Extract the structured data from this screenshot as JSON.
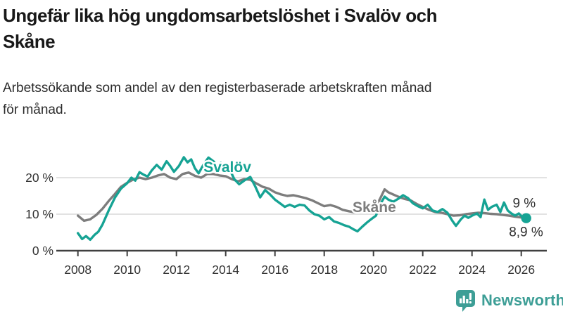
{
  "title": {
    "line1": "Ungefär lika hög ungdomsarbetslöshet i Svalöv och",
    "line2": "Skåne"
  },
  "subtitle": {
    "line1": "Arbetssökande som andel av den registerbaserade arbetskraften månad",
    "line2": "för månad."
  },
  "branding": {
    "logo_text": "Newsworthy",
    "logo_icon": "bar-chart-speech-bubble-icon",
    "brand_color": "#3d9e96"
  },
  "colors": {
    "svalov": "#16a394",
    "skane": "#7d7d7d",
    "axis": "#404040",
    "grid": "#d8d8d8",
    "tick_text": "#333333",
    "annotation_text": "#2e2e2e"
  },
  "chart_data": {
    "type": "line",
    "unit": "%",
    "grid": "horizontal",
    "legend_position": "inline-labels",
    "x_axis": {
      "range": [
        2007.2,
        2027.1
      ],
      "ticks": [
        2008,
        2010,
        2012,
        2014,
        2016,
        2018,
        2020,
        2022,
        2024,
        2026
      ]
    },
    "y_axis": {
      "range": [
        0,
        27
      ],
      "ticks": [
        {
          "value": 0,
          "label": "0 %"
        },
        {
          "value": 10,
          "label": "10 %"
        },
        {
          "value": 20,
          "label": "20 %"
        }
      ]
    },
    "series": [
      {
        "name": "Skåne",
        "color": "#7d7d7d",
        "end_dot": false,
        "label": {
          "text": "Skåne",
          "year": 2019.15,
          "value": 10.6
        },
        "points": [
          [
            2008.0,
            9.6
          ],
          [
            2008.25,
            8.2
          ],
          [
            2008.5,
            8.6
          ],
          [
            2008.75,
            9.8
          ],
          [
            2009.0,
            11.5
          ],
          [
            2009.25,
            13.6
          ],
          [
            2009.5,
            15.5
          ],
          [
            2009.75,
            17.5
          ],
          [
            2010.0,
            18.6
          ],
          [
            2010.25,
            19.5
          ],
          [
            2010.5,
            20.0
          ],
          [
            2010.75,
            19.6
          ],
          [
            2011.0,
            20.0
          ],
          [
            2011.25,
            20.6
          ],
          [
            2011.5,
            21.0
          ],
          [
            2011.75,
            20.0
          ],
          [
            2012.0,
            19.6
          ],
          [
            2012.25,
            21.0
          ],
          [
            2012.5,
            21.4
          ],
          [
            2012.75,
            20.5
          ],
          [
            2013.0,
            20.0
          ],
          [
            2013.25,
            21.0
          ],
          [
            2013.5,
            21.0
          ],
          [
            2013.75,
            20.6
          ],
          [
            2014.0,
            20.4
          ],
          [
            2014.25,
            19.6
          ],
          [
            2014.5,
            19.0
          ],
          [
            2014.75,
            19.6
          ],
          [
            2015.0,
            19.4
          ],
          [
            2015.25,
            18.4
          ],
          [
            2015.5,
            17.5
          ],
          [
            2015.75,
            17.0
          ],
          [
            2016.0,
            16.0
          ],
          [
            2016.25,
            15.4
          ],
          [
            2016.5,
            15.0
          ],
          [
            2016.75,
            15.2
          ],
          [
            2017.0,
            14.8
          ],
          [
            2017.25,
            14.4
          ],
          [
            2017.5,
            13.8
          ],
          [
            2017.75,
            13.0
          ],
          [
            2018.0,
            12.2
          ],
          [
            2018.25,
            12.5
          ],
          [
            2018.5,
            12.0
          ],
          [
            2018.75,
            11.2
          ],
          [
            2019.0,
            10.8
          ],
          [
            2019.25,
            10.5
          ],
          [
            2019.5,
            10.8
          ],
          [
            2019.75,
            11.0
          ],
          [
            2020.0,
            11.2
          ],
          [
            2020.25,
            14.0
          ],
          [
            2020.45,
            16.8
          ],
          [
            2020.6,
            16.0
          ],
          [
            2020.8,
            15.4
          ],
          [
            2021.0,
            14.8
          ],
          [
            2021.25,
            14.2
          ],
          [
            2021.5,
            13.8
          ],
          [
            2021.75,
            12.8
          ],
          [
            2022.0,
            12.0
          ],
          [
            2022.25,
            11.2
          ],
          [
            2022.5,
            10.6
          ],
          [
            2022.75,
            10.4
          ],
          [
            2023.0,
            10.0
          ],
          [
            2023.25,
            9.6
          ],
          [
            2023.5,
            9.7
          ],
          [
            2023.75,
            10.0
          ],
          [
            2024.0,
            10.2
          ],
          [
            2024.25,
            10.4
          ],
          [
            2024.5,
            10.3
          ],
          [
            2024.75,
            10.1
          ],
          [
            2025.0,
            10.0
          ],
          [
            2025.25,
            9.8
          ],
          [
            2025.5,
            9.6
          ],
          [
            2025.75,
            9.3
          ],
          [
            2026.0,
            9.1
          ],
          [
            2026.15,
            9.0
          ]
        ]
      },
      {
        "name": "Svalöv",
        "color": "#16a394",
        "end_dot": true,
        "label": {
          "text": "Svalöv",
          "year": 2013.1,
          "value": 21.5
        },
        "points": [
          [
            2008.0,
            4.8
          ],
          [
            2008.17,
            3.2
          ],
          [
            2008.33,
            4.0
          ],
          [
            2008.5,
            3.0
          ],
          [
            2008.67,
            4.3
          ],
          [
            2008.83,
            5.2
          ],
          [
            2009.0,
            7.2
          ],
          [
            2009.25,
            11.0
          ],
          [
            2009.5,
            14.5
          ],
          [
            2009.75,
            17.0
          ],
          [
            2010.0,
            18.5
          ],
          [
            2010.17,
            20.0
          ],
          [
            2010.33,
            19.2
          ],
          [
            2010.5,
            21.5
          ],
          [
            2010.67,
            20.8
          ],
          [
            2010.83,
            20.3
          ],
          [
            2011.0,
            22.0
          ],
          [
            2011.2,
            23.5
          ],
          [
            2011.4,
            22.2
          ],
          [
            2011.6,
            24.5
          ],
          [
            2011.75,
            23.2
          ],
          [
            2011.9,
            21.6
          ],
          [
            2012.1,
            23.2
          ],
          [
            2012.3,
            25.6
          ],
          [
            2012.45,
            24.2
          ],
          [
            2012.6,
            25.0
          ],
          [
            2012.75,
            22.6
          ],
          [
            2012.9,
            21.2
          ],
          [
            2013.1,
            23.6
          ],
          [
            2013.3,
            25.5
          ],
          [
            2013.5,
            24.5
          ],
          [
            2013.65,
            23.2
          ],
          [
            2013.8,
            24.0
          ],
          [
            2013.95,
            21.8
          ],
          [
            2014.15,
            22.4
          ],
          [
            2014.35,
            19.6
          ],
          [
            2014.55,
            18.2
          ],
          [
            2014.75,
            19.2
          ],
          [
            2015.0,
            20.2
          ],
          [
            2015.2,
            17.6
          ],
          [
            2015.4,
            14.6
          ],
          [
            2015.6,
            16.6
          ],
          [
            2015.8,
            15.4
          ],
          [
            2016.0,
            14.0
          ],
          [
            2016.2,
            13.0
          ],
          [
            2016.4,
            12.0
          ],
          [
            2016.6,
            12.6
          ],
          [
            2016.8,
            12.0
          ],
          [
            2017.0,
            12.6
          ],
          [
            2017.2,
            12.4
          ],
          [
            2017.4,
            11.0
          ],
          [
            2017.6,
            10.0
          ],
          [
            2017.8,
            9.6
          ],
          [
            2018.0,
            8.6
          ],
          [
            2018.2,
            9.2
          ],
          [
            2018.4,
            8.0
          ],
          [
            2018.6,
            7.6
          ],
          [
            2018.8,
            7.0
          ],
          [
            2019.0,
            6.6
          ],
          [
            2019.2,
            5.8
          ],
          [
            2019.35,
            5.3
          ],
          [
            2019.55,
            6.6
          ],
          [
            2019.75,
            7.8
          ],
          [
            2019.9,
            8.6
          ],
          [
            2020.1,
            9.6
          ],
          [
            2020.3,
            13.0
          ],
          [
            2020.45,
            14.8
          ],
          [
            2020.6,
            14.0
          ],
          [
            2020.8,
            13.4
          ],
          [
            2021.0,
            14.2
          ],
          [
            2021.2,
            15.2
          ],
          [
            2021.4,
            14.4
          ],
          [
            2021.6,
            13.0
          ],
          [
            2021.8,
            12.2
          ],
          [
            2022.0,
            11.6
          ],
          [
            2022.2,
            12.6
          ],
          [
            2022.4,
            11.0
          ],
          [
            2022.6,
            10.6
          ],
          [
            2022.8,
            11.4
          ],
          [
            2023.0,
            10.4
          ],
          [
            2023.2,
            8.2
          ],
          [
            2023.35,
            6.8
          ],
          [
            2023.55,
            8.6
          ],
          [
            2023.7,
            9.6
          ],
          [
            2023.85,
            9.0
          ],
          [
            2024.0,
            9.6
          ],
          [
            2024.2,
            10.2
          ],
          [
            2024.35,
            9.2
          ],
          [
            2024.5,
            14.0
          ],
          [
            2024.65,
            11.2
          ],
          [
            2024.8,
            12.0
          ],
          [
            2025.0,
            12.6
          ],
          [
            2025.15,
            10.6
          ],
          [
            2025.3,
            13.2
          ],
          [
            2025.45,
            11.0
          ],
          [
            2025.6,
            10.2
          ],
          [
            2025.75,
            9.6
          ],
          [
            2025.9,
            10.2
          ],
          [
            2026.05,
            9.2
          ],
          [
            2026.2,
            8.9
          ]
        ]
      }
    ],
    "annotations": [
      {
        "text": "9 %",
        "series": "Skåne",
        "year": 2025.65,
        "value": 11.8
      },
      {
        "text": "8,9 %",
        "series": "Svalöv",
        "year": 2025.5,
        "value": 3.9
      }
    ]
  }
}
